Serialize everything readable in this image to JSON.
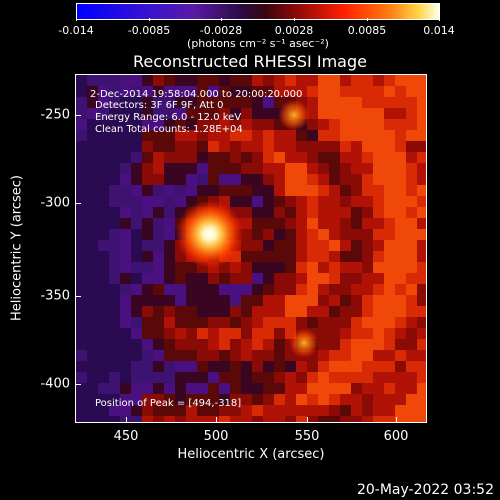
{
  "colorbar": {
    "tick_labels": [
      "-0.014",
      "-0.0085",
      "-0.0028",
      "0.0028",
      "0.0085",
      "0.014"
    ],
    "unit_label": "(photons cm⁻² s⁻¹ asec⁻²)"
  },
  "title": "Reconstructed RHESSI Image",
  "annotations": {
    "time_range": "2-Dec-2014 19:58:04.000 to 20:00:20.000",
    "detectors": "Detectors: 3F 6F 9F, Att 0",
    "energy_range": "Energy Range: 6.0 - 12.0 keV",
    "method_counts": "Clean     Total counts: 1.28E+04",
    "peak_position": "Position of Peak = [494,-318]"
  },
  "axes": {
    "x_label": "Heliocentric X (arcsec)",
    "y_label": "Heliocentric Y (arcsec)",
    "x_ticks": [
      "450",
      "500",
      "550",
      "600"
    ],
    "y_ticks": [
      "-250",
      "-300",
      "-350",
      "-400"
    ],
    "x_range": [
      420,
      615
    ],
    "y_range": [
      -423,
      -230
    ]
  },
  "footer": {
    "date": "20-May-2022 03:52"
  },
  "peak": {
    "x": 494,
    "y": -318
  }
}
